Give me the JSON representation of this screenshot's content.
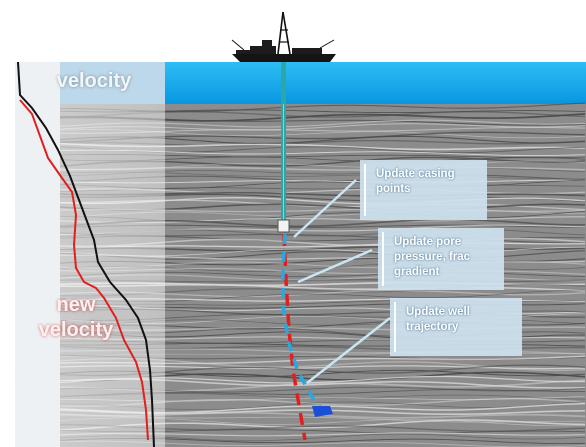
{
  "labels": {
    "velocity": "velocity",
    "new_velocity_line1": "new",
    "new_velocity_line2": "velocity"
  },
  "callouts": [
    {
      "line1": "Update casing",
      "line2": "points",
      "line3": ""
    },
    {
      "line1": "Update pore",
      "line2": "pressure, frac",
      "line3": "gradient"
    },
    {
      "line1": "Update well",
      "line2": "trajectory",
      "line3": ""
    }
  ],
  "colors": {
    "sea": "#0aa0e6",
    "sea_surface": "#22b4f0",
    "seismic_bg": "#8e8e8e",
    "velocity_curve": "#111111",
    "new_velocity_curve": "#e02020",
    "planned_well": "#e02020",
    "updated_well": "#27a8e0",
    "riser": "#2aa7a7",
    "callout_fill": "#cfe2ee"
  },
  "icons": {
    "vessel": "drillship-icon",
    "bit": "drill-bit-icon"
  }
}
